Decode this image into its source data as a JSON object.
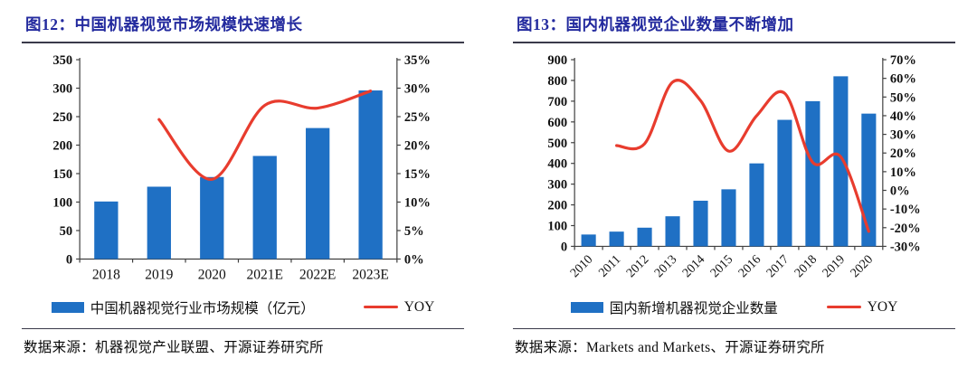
{
  "colors": {
    "bar": "#1F70C4",
    "line": "#E83C2E",
    "title": "#232A9E",
    "rule": "#3A3A4A",
    "axis": "#404040",
    "tick_text": "#111111"
  },
  "chart_data": [
    {
      "type": "bar+line",
      "title": "图12：中国机器视觉市场规模快速增长",
      "source": "数据来源：机器视觉产业联盟、开源证券研究所",
      "categories": [
        "2018",
        "2019",
        "2020",
        "2021E",
        "2022E",
        "2023E"
      ],
      "series": [
        {
          "name": "中国机器视觉行业市场规模（亿元）",
          "type": "bar",
          "axis": "left",
          "values": [
            101,
            127,
            144,
            181,
            230,
            296
          ]
        },
        {
          "name": "YOY",
          "type": "line",
          "axis": "right",
          "unit": "%",
          "values": [
            null,
            24.5,
            14,
            27,
            26.5,
            29.5
          ]
        }
      ],
      "left_axis": {
        "min": 0,
        "max": 350,
        "step": 50,
        "suffix": ""
      },
      "right_axis": {
        "min": 0,
        "max": 35,
        "step": 5,
        "suffix": "%"
      },
      "grid": false,
      "legend_position": "bottom",
      "x_label_rotation": 0
    },
    {
      "type": "bar+line",
      "title": "图13：国内机器视觉企业数量不断增加",
      "source": "数据来源：Markets and Markets、开源证券研究所",
      "categories": [
        "2010",
        "2011",
        "2012",
        "2013",
        "2014",
        "2015",
        "2016",
        "2017",
        "2018",
        "2019",
        "2020"
      ],
      "series": [
        {
          "name": "国内新增机器视觉企业数量",
          "type": "bar",
          "axis": "left",
          "values": [
            57,
            71,
            90,
            145,
            220,
            275,
            400,
            610,
            700,
            820,
            640
          ]
        },
        {
          "name": "YOY",
          "type": "line",
          "axis": "right",
          "unit": "%",
          "values": [
            null,
            24,
            25,
            58,
            48,
            21,
            40,
            52,
            15,
            18,
            -22
          ]
        }
      ],
      "left_axis": {
        "min": 0,
        "max": 900,
        "step": 100,
        "suffix": ""
      },
      "right_axis": {
        "min": -30,
        "max": 70,
        "step": 10,
        "suffix": "%"
      },
      "grid": false,
      "legend_position": "bottom",
      "x_label_rotation": -45
    }
  ]
}
